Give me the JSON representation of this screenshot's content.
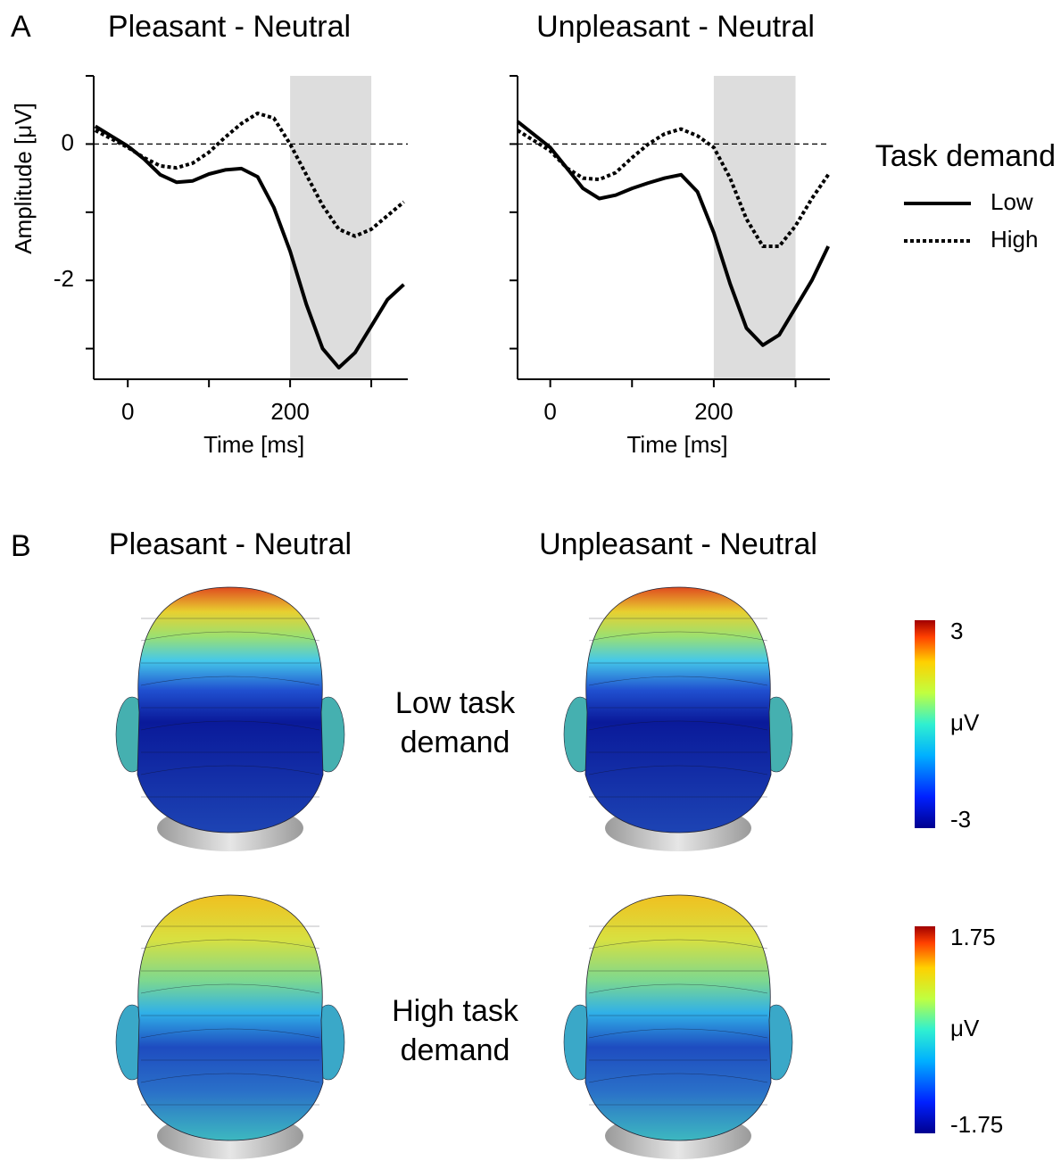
{
  "panel_a_label": "A",
  "panel_b_label": "B",
  "chart_data": [
    {
      "type": "line",
      "title": "Pleasant - Neutral",
      "xlabel": "Time [ms]",
      "ylabel": "Amplitude [μV]",
      "xlim": [
        -42,
        345
      ],
      "xticks": [
        0,
        200
      ],
      "xminor_ticks": [
        100,
        300
      ],
      "ylim": [
        -3.45,
        1
      ],
      "yticks": [
        0,
        -2
      ],
      "yminor_ticks": [
        1,
        -1,
        -3
      ],
      "zero_line": true,
      "shaded_range": [
        200,
        300
      ],
      "x": [
        -40,
        0,
        20,
        40,
        60,
        80,
        100,
        120,
        140,
        160,
        180,
        200,
        220,
        240,
        260,
        280,
        300,
        320,
        340
      ],
      "series": [
        {
          "color": "#000000",
          "dash": "solid",
          "values": [
            0.26,
            -0.03,
            -0.22,
            -0.45,
            -0.56,
            -0.54,
            -0.44,
            -0.38,
            -0.36,
            -0.48,
            -0.93,
            -1.57,
            -2.35,
            -3.0,
            -3.28,
            -3.06,
            -2.67,
            -2.28,
            -2.06
          ]
        },
        {
          "color": "#000000",
          "dash": "dotted",
          "values": [
            0.2,
            -0.05,
            -0.2,
            -0.32,
            -0.35,
            -0.28,
            -0.12,
            0.1,
            0.3,
            0.45,
            0.38,
            0.0,
            -0.45,
            -0.9,
            -1.25,
            -1.35,
            -1.25,
            -1.05,
            -0.85
          ]
        }
      ]
    },
    {
      "type": "line",
      "title": "Unpleasant - Neutral",
      "xlabel": "Time [ms]",
      "xlim": [
        -40,
        342
      ],
      "xticks": [
        0,
        200
      ],
      "xminor_ticks": [
        100,
        300
      ],
      "ylim": [
        -3.45,
        1
      ],
      "yminor_ticks": [
        1,
        0,
        -1,
        -2,
        -3
      ],
      "zero_line": true,
      "shaded_range": [
        200,
        300
      ],
      "legend_title": "Task demand",
      "x": [
        -40,
        0,
        20,
        40,
        60,
        80,
        100,
        120,
        140,
        160,
        180,
        200,
        220,
        240,
        260,
        280,
        300,
        320,
        340
      ],
      "series": [
        {
          "name": "Low",
          "color": "#000000",
          "dash": "solid",
          "values": [
            0.33,
            -0.05,
            -0.35,
            -0.65,
            -0.8,
            -0.75,
            -0.65,
            -0.57,
            -0.5,
            -0.45,
            -0.7,
            -1.3,
            -2.05,
            -2.7,
            -2.95,
            -2.8,
            -2.4,
            -2.0,
            -1.5
          ]
        },
        {
          "name": "High",
          "color": "#000000",
          "dash": "dotted",
          "values": [
            0.2,
            -0.1,
            -0.35,
            -0.5,
            -0.52,
            -0.42,
            -0.2,
            0.0,
            0.15,
            0.22,
            0.12,
            -0.05,
            -0.5,
            -1.1,
            -1.5,
            -1.5,
            -1.2,
            -0.8,
            -0.45
          ]
        }
      ]
    }
  ],
  "topography": {
    "column_titles": [
      "Pleasant - Neutral",
      "Unpleasant - Neutral"
    ],
    "row_labels": [
      [
        "Low task",
        "demand"
      ],
      [
        "High task",
        "demand"
      ]
    ],
    "colorbars": [
      {
        "lim": [
          -3,
          3
        ],
        "ticks": [
          3,
          -3
        ],
        "unit": "μV"
      },
      {
        "lim": [
          -1.75,
          1.75
        ],
        "ticks": [
          1.75,
          -1.75
        ],
        "unit": "μV"
      }
    ]
  }
}
